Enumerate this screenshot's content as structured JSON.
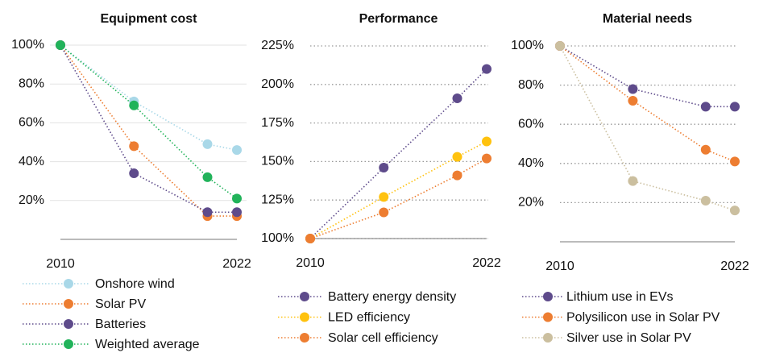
{
  "chart_data": [
    {
      "type": "line",
      "title": "Equipment cost",
      "x": [
        2010,
        2015,
        2020,
        2022
      ],
      "xlim": [
        2010,
        2022
      ],
      "xticks": [
        2010,
        2022
      ],
      "ylim": [
        0,
        100
      ],
      "yticks": [
        {
          "value": 20,
          "label": "20%"
        },
        {
          "value": 40,
          "label": "40%"
        },
        {
          "value": 60,
          "label": "60%"
        },
        {
          "value": 80,
          "label": "80%"
        },
        {
          "value": 100,
          "label": "100%"
        }
      ],
      "grid": true,
      "series": [
        {
          "name": "Onshore wind",
          "color": "#a9d8e8",
          "values": [
            100,
            71,
            49,
            46
          ]
        },
        {
          "name": "Solar PV",
          "color": "#ed7d31",
          "values": [
            100,
            48,
            12,
            12
          ]
        },
        {
          "name": "Batteries",
          "color": "#5e4b8b",
          "values": [
            100,
            34,
            14,
            14
          ]
        },
        {
          "name": "Weighted average",
          "color": "#21b35a",
          "values": [
            100,
            69,
            32,
            21
          ]
        }
      ]
    },
    {
      "type": "line",
      "title": "Performance",
      "x": [
        2010,
        2015,
        2020,
        2022
      ],
      "xlim": [
        2010,
        2022
      ],
      "xticks": [
        2010,
        2022
      ],
      "ylim": [
        100,
        225
      ],
      "yticks": [
        {
          "value": 100,
          "label": "100%"
        },
        {
          "value": 125,
          "label": "125%"
        },
        {
          "value": 150,
          "label": "150%"
        },
        {
          "value": 175,
          "label": "175%"
        },
        {
          "value": 200,
          "label": "200%"
        },
        {
          "value": 225,
          "label": "225%"
        }
      ],
      "grid": true,
      "series": [
        {
          "name": "Battery energy density",
          "color": "#5e4b8b",
          "values": [
            100,
            146,
            191,
            210
          ]
        },
        {
          "name": "LED efficiency",
          "color": "#ffc20e",
          "values": [
            100,
            127,
            153,
            163
          ]
        },
        {
          "name": "Solar cell efficiency",
          "color": "#ed7d31",
          "values": [
            100,
            117,
            141,
            152
          ]
        }
      ]
    },
    {
      "type": "line",
      "title": "Material needs",
      "x": [
        2010,
        2015,
        2020,
        2022
      ],
      "xlim": [
        2010,
        2022
      ],
      "xticks": [
        2010,
        2022
      ],
      "ylim": [
        0,
        100
      ],
      "yticks": [
        {
          "value": 20,
          "label": "20%"
        },
        {
          "value": 40,
          "label": "40%"
        },
        {
          "value": 60,
          "label": "60%"
        },
        {
          "value": 80,
          "label": "80%"
        },
        {
          "value": 100,
          "label": "100%"
        }
      ],
      "grid": true,
      "series": [
        {
          "name": "Lithium use in EVs",
          "color": "#5e4b8b",
          "values": [
            100,
            78,
            69,
            69
          ]
        },
        {
          "name": "Polysilicon use in Solar PV",
          "color": "#ed7d31",
          "values": [
            100,
            72,
            47,
            41
          ]
        },
        {
          "name": "Silver use in Solar PV",
          "color": "#cbbf9f",
          "values": [
            100,
            31,
            21,
            16
          ]
        }
      ]
    }
  ]
}
